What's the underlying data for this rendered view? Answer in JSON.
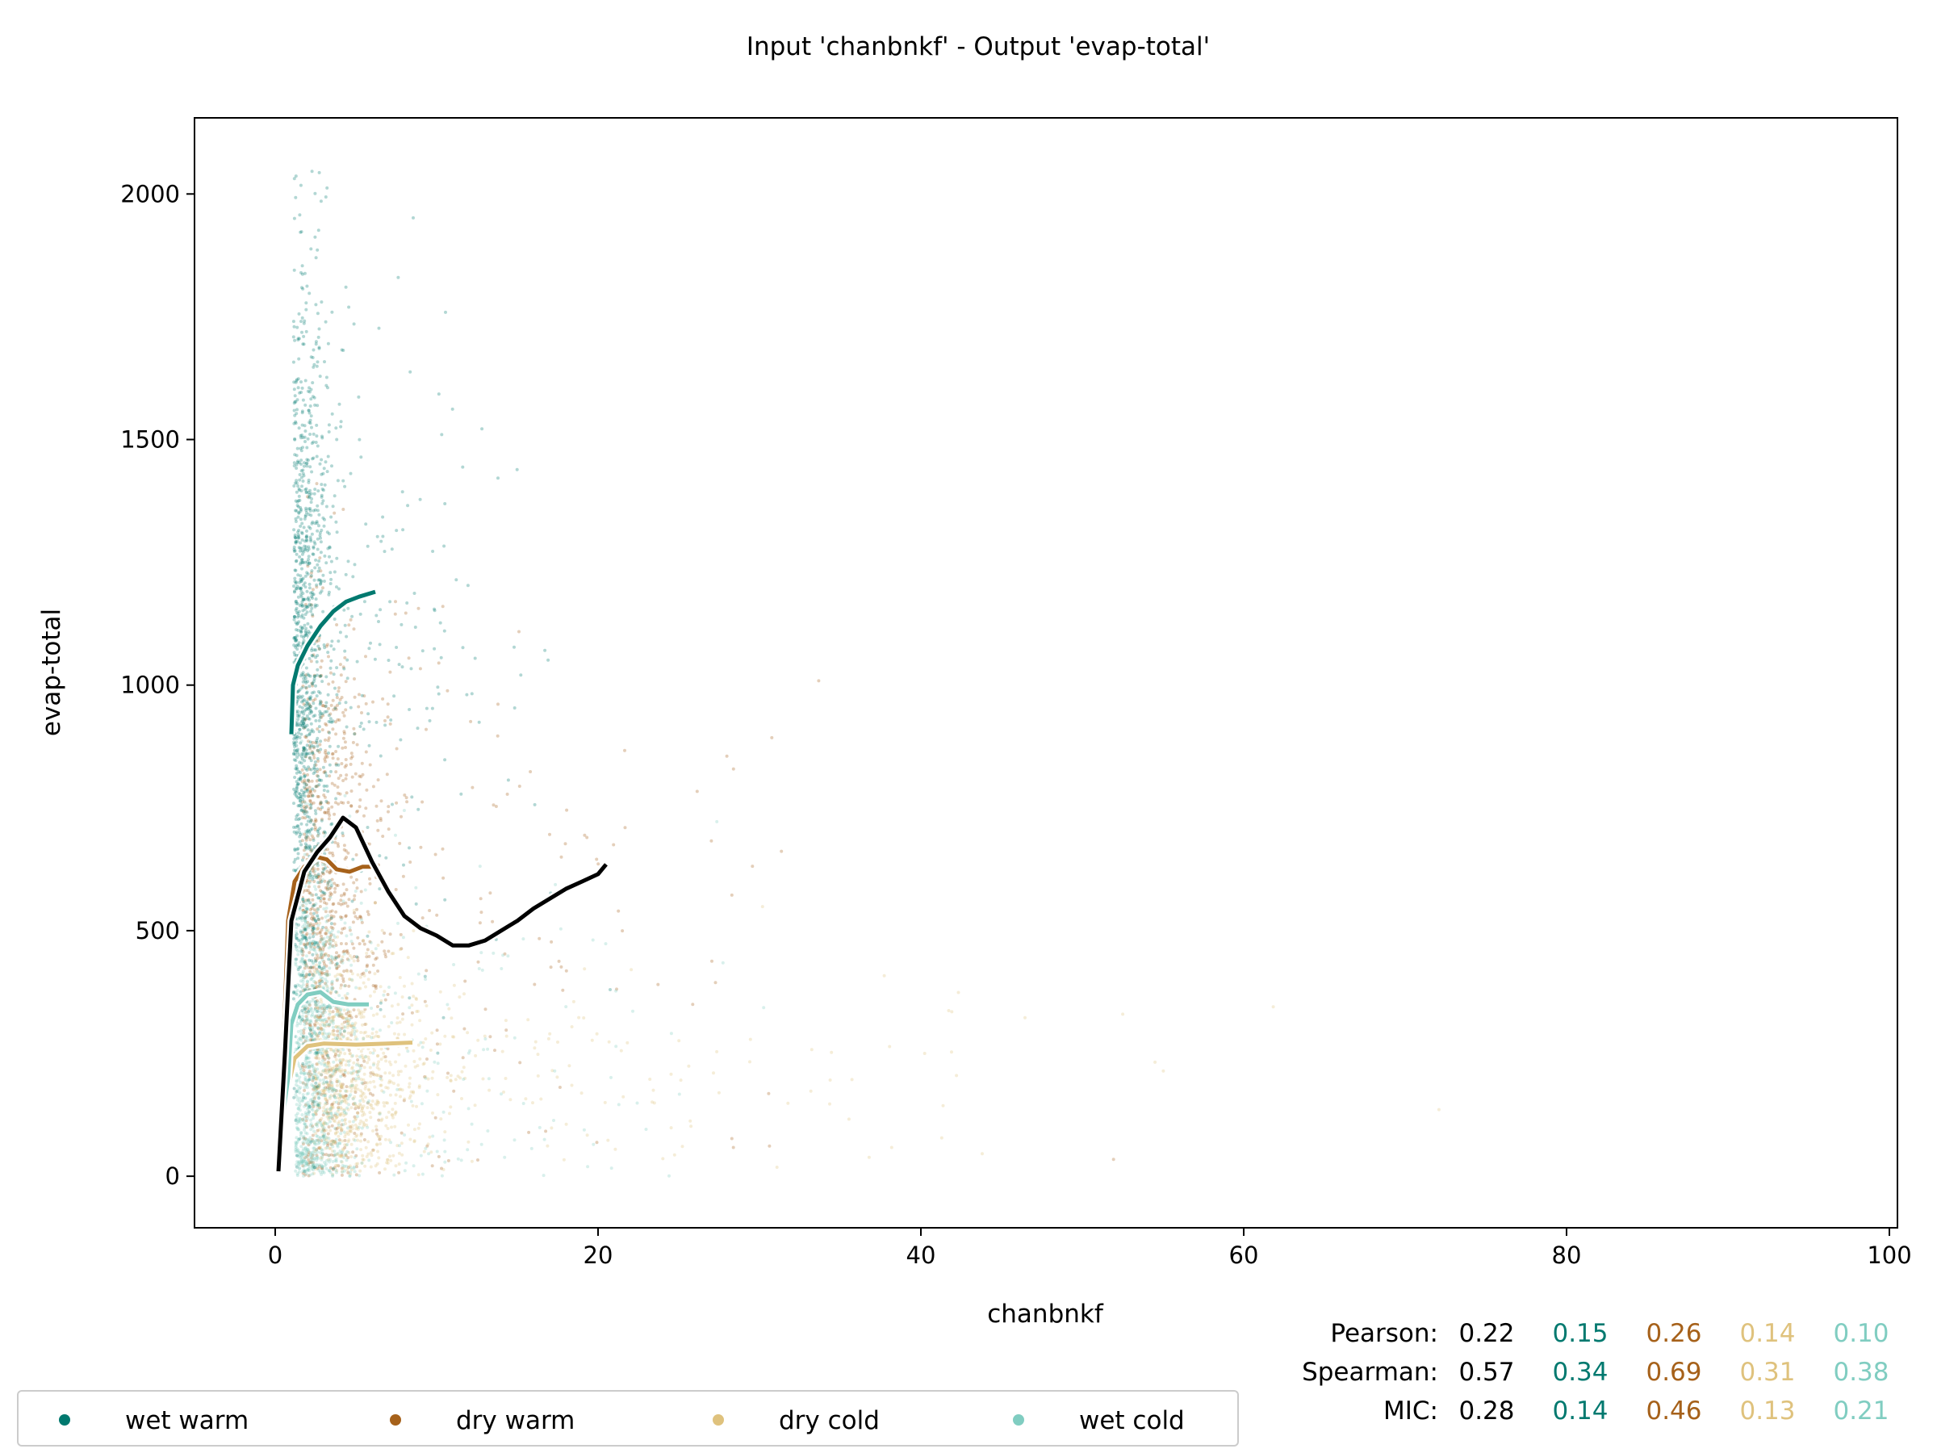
{
  "chart_data": {
    "type": "scatter",
    "title": "Input 'chanbnkf' - Output 'evap-total'",
    "xlabel": "chanbnkf",
    "ylabel": "evap-total",
    "xlim": [
      -5,
      100.5
    ],
    "ylim": [
      -105,
      2155
    ],
    "xticks": [
      0,
      20,
      40,
      60,
      80,
      100
    ],
    "yticks": [
      0,
      500,
      1000,
      1500,
      2000
    ],
    "grid": false,
    "legend_placement": "bottom-left, below axes",
    "series": [
      {
        "name": "wet warm",
        "color": "#01796f",
        "trend": [
          [
            1.0,
            900
          ],
          [
            1.1,
            1000
          ],
          [
            1.4,
            1040
          ],
          [
            2.0,
            1080
          ],
          [
            2.8,
            1120
          ],
          [
            3.6,
            1150
          ],
          [
            4.4,
            1170
          ],
          [
            5.2,
            1180
          ],
          [
            6.2,
            1190
          ]
        ],
        "cloud": {
          "cx": 1.8,
          "cy": 1050,
          "sx": 1.1,
          "sy": 380,
          "n": 1400
        }
      },
      {
        "name": "dry warm",
        "color": "#a6611a",
        "trend": [
          [
            0.2,
            30
          ],
          [
            0.5,
            250
          ],
          [
            0.8,
            520
          ],
          [
            1.2,
            600
          ],
          [
            1.8,
            630
          ],
          [
            2.6,
            650
          ],
          [
            3.2,
            645
          ],
          [
            3.8,
            625
          ],
          [
            4.6,
            620
          ],
          [
            5.4,
            630
          ],
          [
            6.0,
            630
          ]
        ],
        "cloud": {
          "cx": 3.0,
          "cy": 520,
          "sx": 2.2,
          "sy": 300,
          "n": 1100
        }
      },
      {
        "name": "dry cold",
        "color": "#dfc27d",
        "trend": [
          [
            0.4,
            130
          ],
          [
            0.8,
            180
          ],
          [
            1.2,
            240
          ],
          [
            2.0,
            265
          ],
          [
            3.0,
            270
          ],
          [
            5.0,
            268
          ],
          [
            7.0,
            270
          ],
          [
            8.5,
            272
          ]
        ],
        "cloud": {
          "cx": 4.5,
          "cy": 200,
          "sx": 3.5,
          "sy": 120,
          "n": 900
        }
      },
      {
        "name": "wet cold",
        "color": "#80cdc1",
        "trend": [
          [
            0.5,
            130
          ],
          [
            0.8,
            200
          ],
          [
            1.0,
            310
          ],
          [
            1.4,
            350
          ],
          [
            2.0,
            370
          ],
          [
            2.8,
            375
          ],
          [
            3.6,
            355
          ],
          [
            4.5,
            350
          ],
          [
            5.8,
            350
          ]
        ],
        "cloud": {
          "cx": 2.2,
          "cy": 250,
          "sx": 1.6,
          "sy": 200,
          "n": 1200
        }
      }
    ],
    "overall": {
      "name": "all",
      "color": "#000000",
      "trend": [
        [
          0.2,
          10
        ],
        [
          0.6,
          250
        ],
        [
          1.0,
          520
        ],
        [
          1.8,
          620
        ],
        [
          2.6,
          660
        ],
        [
          3.4,
          690
        ],
        [
          4.2,
          730
        ],
        [
          5.0,
          710
        ],
        [
          6.0,
          640
        ],
        [
          7.0,
          580
        ],
        [
          8.0,
          530
        ],
        [
          9.0,
          505
        ],
        [
          10.0,
          490
        ],
        [
          11.0,
          470
        ],
        [
          12.0,
          470
        ],
        [
          13.0,
          480
        ],
        [
          14.0,
          500
        ],
        [
          15.0,
          520
        ],
        [
          16.0,
          545
        ],
        [
          17.0,
          565
        ],
        [
          18.0,
          585
        ],
        [
          19.0,
          600
        ],
        [
          20.0,
          615
        ],
        [
          20.5,
          635
        ]
      ]
    },
    "stats": {
      "labels": [
        "Pearson:",
        "Spearman:",
        "MIC:"
      ],
      "columns": [
        {
          "color": "#000000",
          "values": [
            "0.22",
            "0.57",
            "0.28"
          ]
        },
        {
          "color": "#01796f",
          "values": [
            "0.15",
            "0.34",
            "0.14"
          ]
        },
        {
          "color": "#a6611a",
          "values": [
            "0.26",
            "0.69",
            "0.46"
          ]
        },
        {
          "color": "#dfc27d",
          "values": [
            "0.14",
            "0.31",
            "0.13"
          ]
        },
        {
          "color": "#80cdc1",
          "values": [
            "0.10",
            "0.38",
            "0.21"
          ]
        }
      ]
    }
  }
}
